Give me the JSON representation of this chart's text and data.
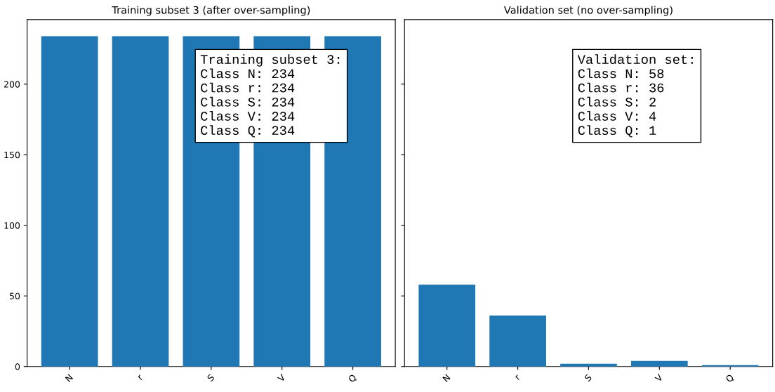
{
  "chart_data": [
    {
      "type": "bar",
      "title": "Training subset 3 (after over-sampling)",
      "categories": [
        "N",
        "r",
        "S",
        "V",
        "Q"
      ],
      "values": [
        234,
        234,
        234,
        234,
        234
      ],
      "color": "#1f77b4",
      "ylim": [
        0,
        245.7
      ],
      "yticks": [
        0,
        50,
        100,
        150,
        200
      ],
      "grid": false,
      "annotations": [
        "Training subset 3:\nClass N: 234\nClass r: 234\nClass S: 234\nClass V: 234\nClass Q: 234"
      ]
    },
    {
      "type": "bar",
      "title": "Validation set (no over-sampling)",
      "categories": [
        "N",
        "r",
        "S",
        "V",
        "Q"
      ],
      "values": [
        58,
        36,
        2,
        4,
        1
      ],
      "color": "#1f77b4",
      "ylim": [
        0,
        245.7
      ],
      "yticks": [
        0,
        50,
        100,
        150,
        200
      ],
      "grid": false,
      "tick_labels": "x",
      "annotations": [
        "Validation set:\nClass N: 58\nClass r: 36\nClass S: 2\nClass V: 4\nClass Q: 1"
      ]
    }
  ]
}
